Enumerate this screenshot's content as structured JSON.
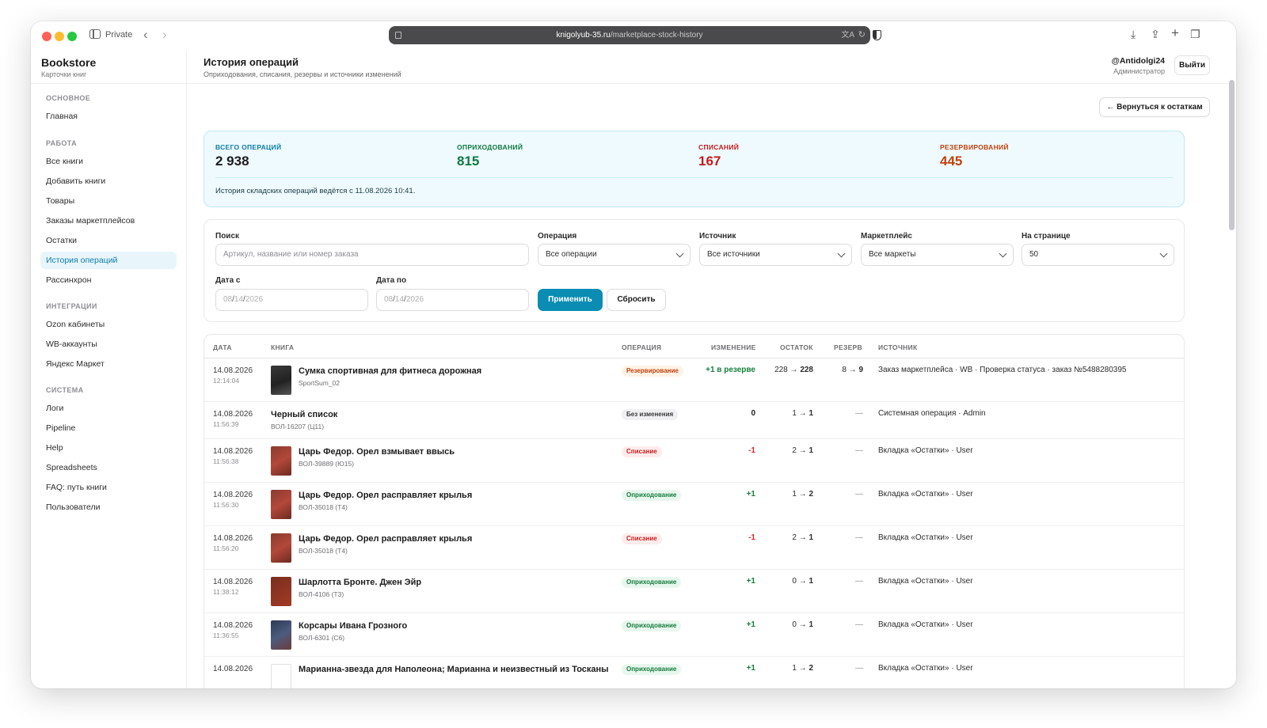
{
  "browser": {
    "private_label": "Private",
    "url_domain": "knigolyub-35.ru",
    "url_path": "/marketplace-stock-history"
  },
  "sidebar": {
    "brand": "Bookstore",
    "brand_sub": "Карточки книг",
    "sections": [
      {
        "title": "ОСНОВНОЕ",
        "items": [
          "Главная"
        ]
      },
      {
        "title": "РАБОТА",
        "items": [
          "Все книги",
          "Добавить книги",
          "Товары",
          "Заказы маркетплейсов",
          "Остатки",
          "История операций",
          "Рассинхрон"
        ]
      },
      {
        "title": "ИНТЕГРАЦИИ",
        "items": [
          "Ozon кабинеты",
          "WB-аккаунты",
          "Яндекс Маркет"
        ]
      },
      {
        "title": "СИСТЕМА",
        "items": [
          "Логи",
          "Pipeline",
          "Help",
          "Spreadsheets",
          "FAQ: путь книги",
          "Пользователи"
        ]
      }
    ],
    "active_item": "История операций"
  },
  "header": {
    "title": "История операций",
    "subtitle": "Оприходования, списания, резервы и источники изменений",
    "username": "@Antidolgi24",
    "role": "Администратор",
    "logout_label": "Выйти",
    "back_label": "← Вернуться к остаткам"
  },
  "stats": {
    "total_label": "ВСЕГО ОПЕРАЦИЙ",
    "total_value": "2 938",
    "in_label": "ОПРИХОДОВАНИЙ",
    "in_value": "815",
    "off_label": "СПИСАНИЙ",
    "off_value": "167",
    "res_label": "РЕЗЕРВИРОВАНИЙ",
    "res_value": "445",
    "note": "История складских операций ведётся с 11.08.2026 10:41.",
    "colors": {
      "total": "#1c1c1e",
      "in": "#0f7a43",
      "off": "#c41c1c",
      "res": "#c2410c",
      "label_teal": "#0b7ea8"
    }
  },
  "filters": {
    "search_label": "Поиск",
    "search_placeholder": "Артикул, название или номер заказа",
    "operation_label": "Операция",
    "operation_value": "Все операции",
    "source_label": "Источник",
    "source_value": "Все источники",
    "market_label": "Маркетплейс",
    "market_value": "Все маркеты",
    "per_page_label": "На странице",
    "per_page_value": "50",
    "date_from_label": "Дата с",
    "date_to_label": "Дата по",
    "date_mm": "08",
    "date_dd": "14",
    "date_yyyy": "2026",
    "apply_label": "Применить",
    "reset_label": "Сбросить"
  },
  "table": {
    "headers": [
      "ДАТА",
      "КНИГА",
      "ОПЕРАЦИЯ",
      "ИЗМЕНЕНИЕ",
      "ОСТАТОК",
      "РЕЗЕРВ",
      "ИСТОЧНИК"
    ],
    "rows": [
      {
        "date": "14.08.2026",
        "time": "12:14:04",
        "thumb": "bag",
        "title": "Сумка спортивная для фитнеса дорожная",
        "sku": "SportSum_02",
        "op": "Резервирование",
        "op_kind": "res",
        "change": "+1 в резерве",
        "change_kind": "g",
        "bal_from": "228",
        "bal_to": "228",
        "res_from": "8",
        "res_to": "9",
        "source": "Заказ маркетплейса · WB · Проверка статуса · заказ №5488280395"
      },
      {
        "date": "14.08.2026",
        "time": "11:56:39",
        "thumb": "",
        "title": "Черный список",
        "sku": "ВОЛ-16207 (Ц11)",
        "op": "Без изменения",
        "op_kind": "none",
        "change": "0",
        "change_kind": "k",
        "bal_from": "1",
        "bal_to": "1",
        "res_dash": "—",
        "source": "Системная операция · Admin"
      },
      {
        "date": "14.08.2026",
        "time": "11:56:38",
        "thumb": "red",
        "title": "Царь Федор. Орел взмывает ввысь",
        "sku": "ВОЛ-39889 (Ю15)",
        "op": "Списание",
        "op_kind": "off",
        "change": "-1",
        "change_kind": "r",
        "bal_from": "2",
        "bal_to": "1",
        "res_dash": "—",
        "source": "Вкладка «Остатки» · User"
      },
      {
        "date": "14.08.2026",
        "time": "11:56:30",
        "thumb": "red",
        "title": "Царь Федор. Орел расправляет крылья",
        "sku": "ВОЛ-35018 (Т4)",
        "op": "Оприходование",
        "op_kind": "in",
        "change": "+1",
        "change_kind": "g",
        "bal_from": "1",
        "bal_to": "2",
        "res_dash": "—",
        "source": "Вкладка «Остатки» · User"
      },
      {
        "date": "14.08.2026",
        "time": "11:56:20",
        "thumb": "red",
        "title": "Царь Федор. Орел расправляет крылья",
        "sku": "ВОЛ-35018 (Т4)",
        "op": "Списание",
        "op_kind": "off",
        "change": "-1",
        "change_kind": "r",
        "bal_from": "2",
        "bal_to": "1",
        "res_dash": "—",
        "source": "Вкладка «Остатки» · User"
      },
      {
        "date": "14.08.2026",
        "time": "11:38:12",
        "thumb": "brown",
        "title": "Шарлотта Бронте. Джен Эйр",
        "sku": "ВОЛ-4106 (Т3)",
        "op": "Оприходование",
        "op_kind": "in",
        "change": "+1",
        "change_kind": "g",
        "bal_from": "0",
        "bal_to": "1",
        "res_dash": "—",
        "source": "Вкладка «Остатки» · User"
      },
      {
        "date": "14.08.2026",
        "time": "11:36:55",
        "thumb": "blue",
        "title": "Корсары Ивана Грозного",
        "sku": "ВОЛ-6301 (С6)",
        "op": "Оприходование",
        "op_kind": "in",
        "change": "+1",
        "change_kind": "g",
        "bal_from": "0",
        "bal_to": "1",
        "res_dash": "—",
        "source": "Вкладка «Остатки» · User"
      },
      {
        "date": "14.08.2026",
        "time": "",
        "thumb": "empty",
        "title": "Марианна-звезда для Наполеона; Марианна и неизвестный из Тосканы",
        "sku": "",
        "op": "Оприходование",
        "op_kind": "in",
        "change": "+1",
        "change_kind": "g",
        "bal_from": "1",
        "bal_to": "2",
        "res_dash": "—",
        "source": "Вкладка «Остатки» · User"
      }
    ]
  }
}
